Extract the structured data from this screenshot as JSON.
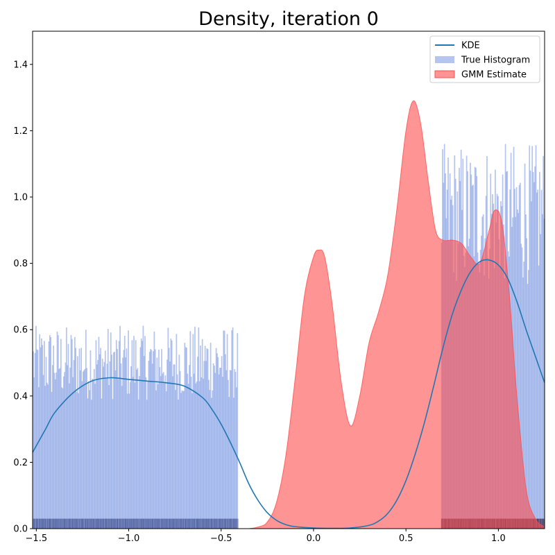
{
  "chart_data": {
    "type": "area",
    "title": "Density, iteration 0",
    "xlabel": "",
    "ylabel": "",
    "xlim": [
      -1.52,
      1.25
    ],
    "ylim": [
      0,
      1.5
    ],
    "x_ticks": [
      -1.5,
      -1.0,
      -0.5,
      0.0,
      0.5,
      1.0
    ],
    "x_tick_labels": [
      "−1.5",
      "−1.0",
      "−0.5",
      "0.0",
      "0.5",
      "1.0"
    ],
    "y_ticks": [
      0.0,
      0.2,
      0.4,
      0.6,
      0.8,
      1.0,
      1.2,
      1.4
    ],
    "y_tick_labels": [
      "0.0",
      "0.2",
      "0.4",
      "0.6",
      "0.8",
      "1.0",
      "1.2",
      "1.4"
    ],
    "grid": false,
    "legend_position": "top-right",
    "series": [
      {
        "name": "KDE",
        "kind": "line",
        "color": "#1f77b4",
        "x": [
          -1.52,
          -1.45,
          -1.4,
          -1.3,
          -1.2,
          -1.1,
          -1.0,
          -0.9,
          -0.8,
          -0.7,
          -0.6,
          -0.55,
          -0.5,
          -0.45,
          -0.4,
          -0.35,
          -0.3,
          -0.25,
          -0.2,
          -0.15,
          -0.1,
          0.0,
          0.1,
          0.2,
          0.3,
          0.35,
          0.4,
          0.45,
          0.5,
          0.55,
          0.6,
          0.65,
          0.7,
          0.75,
          0.8,
          0.85,
          0.9,
          0.95,
          1.0,
          1.05,
          1.1,
          1.15,
          1.2,
          1.25
        ],
        "y": [
          0.23,
          0.3,
          0.35,
          0.41,
          0.445,
          0.455,
          0.45,
          0.445,
          0.44,
          0.43,
          0.395,
          0.36,
          0.315,
          0.26,
          0.2,
          0.135,
          0.085,
          0.048,
          0.025,
          0.012,
          0.006,
          0.002,
          0.001,
          0.002,
          0.01,
          0.022,
          0.045,
          0.085,
          0.145,
          0.225,
          0.32,
          0.43,
          0.545,
          0.645,
          0.72,
          0.775,
          0.805,
          0.81,
          0.795,
          0.755,
          0.685,
          0.6,
          0.52,
          0.44
        ]
      },
      {
        "name": "True Histogram",
        "kind": "histogram",
        "color": "#6b8be0",
        "segments": [
          {
            "x_start": -1.52,
            "x_end": -0.41,
            "level": 0.5
          },
          {
            "x_start": 0.69,
            "x_end": 1.25,
            "level": 0.95
          }
        ]
      },
      {
        "name": "GMM Estimate",
        "kind": "area",
        "color": "#ff4d4d",
        "x": [
          -0.35,
          -0.3,
          -0.25,
          -0.2,
          -0.15,
          -0.1,
          -0.05,
          0.0,
          0.03,
          0.06,
          0.1,
          0.15,
          0.2,
          0.25,
          0.3,
          0.35,
          0.4,
          0.45,
          0.5,
          0.54,
          0.58,
          0.62,
          0.66,
          0.7,
          0.75,
          0.8,
          0.85,
          0.9,
          0.95,
          0.98,
          1.02,
          1.06,
          1.1,
          1.15,
          1.2,
          1.25
        ],
        "y": [
          0.0,
          0.005,
          0.02,
          0.08,
          0.22,
          0.45,
          0.7,
          0.82,
          0.84,
          0.82,
          0.68,
          0.44,
          0.31,
          0.4,
          0.56,
          0.65,
          0.76,
          0.96,
          1.2,
          1.29,
          1.22,
          1.05,
          0.9,
          0.87,
          0.87,
          0.86,
          0.82,
          0.8,
          0.9,
          0.96,
          0.92,
          0.7,
          0.4,
          0.12,
          0.03,
          0.005
        ]
      }
    ],
    "rug_regions": [
      {
        "x_start": -1.52,
        "x_end": -0.41,
        "color": "#3a4a8a"
      },
      {
        "x_start": 0.69,
        "x_end": 1.25,
        "color": "#2a1030"
      }
    ]
  }
}
